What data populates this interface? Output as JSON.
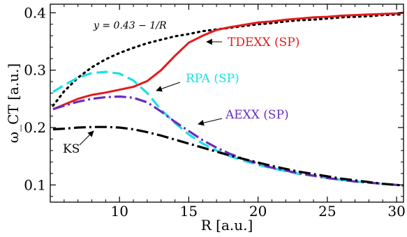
{
  "chart_data": {
    "type": "line",
    "xlabel": "R [a.u.]",
    "ylabel": "ω_CT [a.u.]",
    "xlim": [
      5,
      30.5
    ],
    "ylim": [
      0.07,
      0.415
    ],
    "x_ticks": [
      10,
      15,
      20,
      25,
      30
    ],
    "x_tick_labels": [
      "10",
      "15",
      "20",
      "25",
      "30"
    ],
    "y_ticks": [
      0.1,
      0.2,
      0.3,
      0.4
    ],
    "y_tick_labels": [
      "0.1",
      "0.2",
      "0.3",
      "0.4"
    ],
    "grid": false,
    "legend": "none (inline annotations)",
    "series": [
      {
        "name": "y = 0.43 − 1/R",
        "color": "#000000",
        "style": "dotted",
        "x": [
          5.2,
          6,
          7,
          8,
          9,
          10,
          11,
          12,
          13,
          14,
          15,
          16,
          17,
          18,
          19,
          20,
          21,
          22,
          23,
          24,
          25,
          26,
          27,
          28,
          29,
          30,
          30.5
        ],
        "y": [
          0.238,
          0.263,
          0.287,
          0.305,
          0.319,
          0.33,
          0.339,
          0.347,
          0.353,
          0.359,
          0.363,
          0.368,
          0.371,
          0.374,
          0.377,
          0.38,
          0.382,
          0.385,
          0.387,
          0.388,
          0.39,
          0.392,
          0.393,
          0.394,
          0.396,
          0.397,
          0.397
        ]
      },
      {
        "name": "TDEXX (SP)",
        "color": "#e41a1c",
        "style": "solid",
        "x": [
          5.2,
          6,
          7,
          8,
          9,
          10,
          11,
          12,
          13,
          14,
          15,
          16,
          17,
          18,
          19,
          20,
          21,
          22,
          23,
          24,
          25,
          26,
          27,
          28,
          29,
          30,
          30.5
        ],
        "y": [
          0.232,
          0.24,
          0.25,
          0.257,
          0.261,
          0.266,
          0.271,
          0.281,
          0.3,
          0.325,
          0.348,
          0.36,
          0.37,
          0.375,
          0.379,
          0.383,
          0.385,
          0.388,
          0.39,
          0.392,
          0.393,
          0.395,
          0.396,
          0.397,
          0.398,
          0.399,
          0.4
        ]
      },
      {
        "name": "RPA (SP)",
        "color": "#17e0e8",
        "style": "dashed",
        "x": [
          5.2,
          6,
          7,
          8,
          9,
          10,
          11,
          12,
          13,
          14,
          15,
          16,
          17,
          18,
          19,
          20,
          21,
          22,
          23,
          24,
          25,
          26,
          27,
          28,
          29,
          30,
          30.5
        ],
        "y": [
          0.262,
          0.274,
          0.287,
          0.295,
          0.297,
          0.294,
          0.282,
          0.26,
          0.231,
          0.208,
          0.188,
          0.172,
          0.16,
          0.15,
          0.142,
          0.135,
          0.129,
          0.124,
          0.119,
          0.116,
          0.112,
          0.109,
          0.106,
          0.104,
          0.102,
          0.1,
          0.099
        ]
      },
      {
        "name": "AEXX (SP)",
        "color": "#6a2cc0",
        "style": "dash-dot",
        "x": [
          5.2,
          6,
          7,
          8,
          9,
          10,
          11,
          12,
          13,
          14,
          15,
          16,
          17,
          18,
          19,
          20,
          21,
          22,
          23,
          24,
          25,
          26,
          27,
          28,
          29,
          30,
          30.5
        ],
        "y": [
          0.232,
          0.238,
          0.245,
          0.25,
          0.253,
          0.254,
          0.252,
          0.244,
          0.228,
          0.21,
          0.194,
          0.178,
          0.165,
          0.154,
          0.145,
          0.137,
          0.13,
          0.125,
          0.12,
          0.116,
          0.112,
          0.109,
          0.106,
          0.104,
          0.102,
          0.1,
          0.099
        ]
      },
      {
        "name": "KS",
        "color": "#000000",
        "style": "dash-dot",
        "x": [
          5.2,
          6,
          7,
          8,
          9,
          10,
          11,
          12,
          13,
          14,
          15,
          16,
          17,
          18,
          19,
          20,
          21,
          22,
          23,
          24,
          25,
          26,
          27,
          28,
          29,
          30,
          30.5
        ],
        "y": [
          0.197,
          0.198,
          0.2,
          0.201,
          0.201,
          0.2,
          0.197,
          0.192,
          0.186,
          0.179,
          0.172,
          0.165,
          0.158,
          0.151,
          0.145,
          0.139,
          0.133,
          0.128,
          0.123,
          0.119,
          0.115,
          0.111,
          0.108,
          0.105,
          0.102,
          0.1,
          0.099
        ]
      }
    ],
    "annotations": {
      "formula": "y = 0.43 − 1/R",
      "tdexx": "TDEXX (SP)",
      "rpa": "RPA (SP)",
      "aexx": "AEXX (SP)",
      "ks": "KS"
    }
  }
}
